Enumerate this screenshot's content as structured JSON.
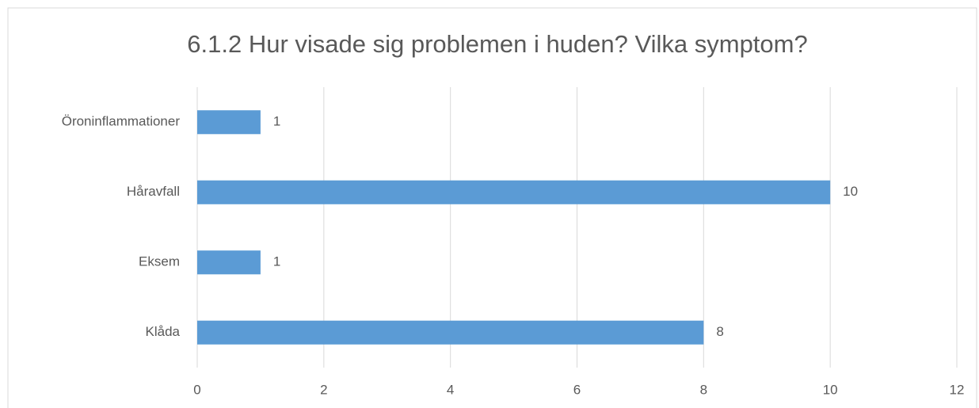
{
  "chart_data": {
    "type": "bar",
    "orientation": "horizontal",
    "title": "6.1.2 Hur visade sig problemen i huden? Vilka symptom?",
    "categories": [
      "Öroninflammationer",
      "Håravfall",
      "Eksem",
      "Klåda"
    ],
    "values": [
      1,
      10,
      1,
      8
    ],
    "color": "#5b9bd5",
    "xlim": [
      0,
      12
    ],
    "xticks": [
      0,
      2,
      4,
      6,
      8,
      10,
      12
    ],
    "grid": true
  }
}
